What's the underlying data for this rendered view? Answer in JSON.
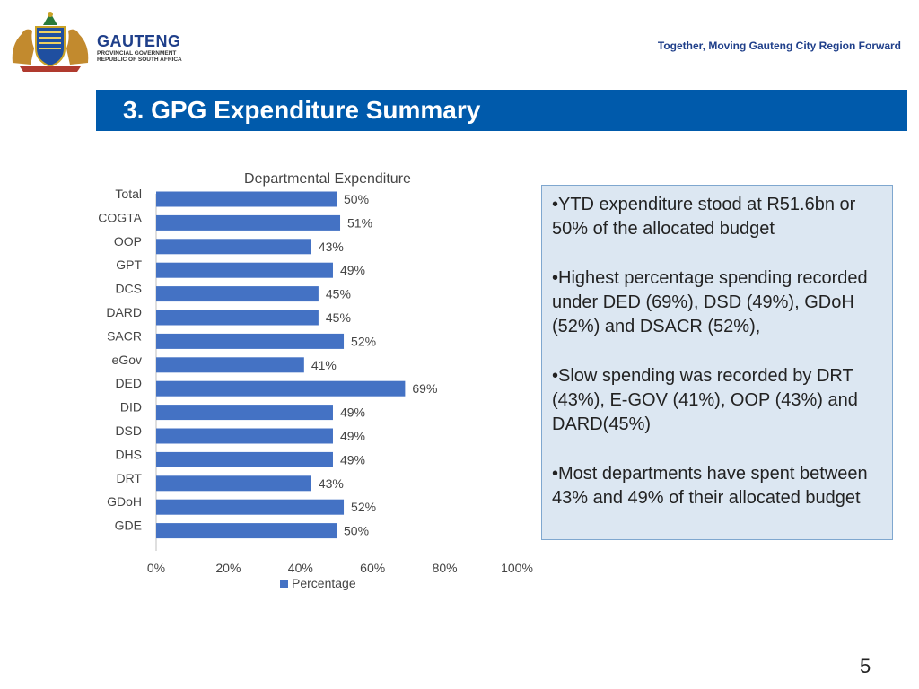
{
  "header": {
    "logo": {
      "name": "GAUTENG",
      "sub1": "PROVINCIAL GOVERNMENT",
      "sub2": "REPUBLIC OF SOUTH AFRICA"
    },
    "tagline": "Together, Moving Gauteng City Region Forward",
    "title": "3. GPG Expenditure Summary"
  },
  "colors": {
    "brand_blue": "#005aab",
    "bar": "#4472c4",
    "notes_bg": "#dce7f2",
    "notes_border": "#7fa7cf"
  },
  "chart_data": {
    "type": "bar",
    "orientation": "horizontal",
    "title": "Departmental Expenditure",
    "categories": [
      "Total",
      "COGTA",
      "OOP",
      "GPT",
      "DCS",
      "DARD",
      "SACR",
      "eGov",
      "DED",
      "DID",
      "DSD",
      "DHS",
      "DRT",
      "GDoH",
      "GDE"
    ],
    "series": [
      {
        "name": "Percentage",
        "values": [
          50,
          51,
          43,
          49,
          45,
          45,
          52,
          41,
          69,
          49,
          49,
          49,
          43,
          52,
          50
        ]
      }
    ],
    "data_labels": [
      "50%",
      "51%",
      "43%",
      "49%",
      "45%",
      "45%",
      "52%",
      "41%",
      "69%",
      "49%",
      "49%",
      "49%",
      "43%",
      "52%",
      "50%"
    ],
    "x_ticks": [
      "0%",
      "20%",
      "40%",
      "60%",
      "80%",
      "100%"
    ],
    "xlim": [
      0,
      100
    ],
    "legend": "bottom",
    "grid": false
  },
  "notes": [
    "•YTD expenditure stood at R51.6bn or 50% of the allocated budget",
    "•Highest percentage spending recorded under DED (69%), DSD (49%), GDoH (52%) and DSACR (52%),",
    "•Slow spending was recorded by DRT (43%), E-GOV (41%), OOP (43%) and DARD(45%)",
    "•Most departments have spent between 43% and 49% of their allocated budget"
  ],
  "page_number": "5"
}
